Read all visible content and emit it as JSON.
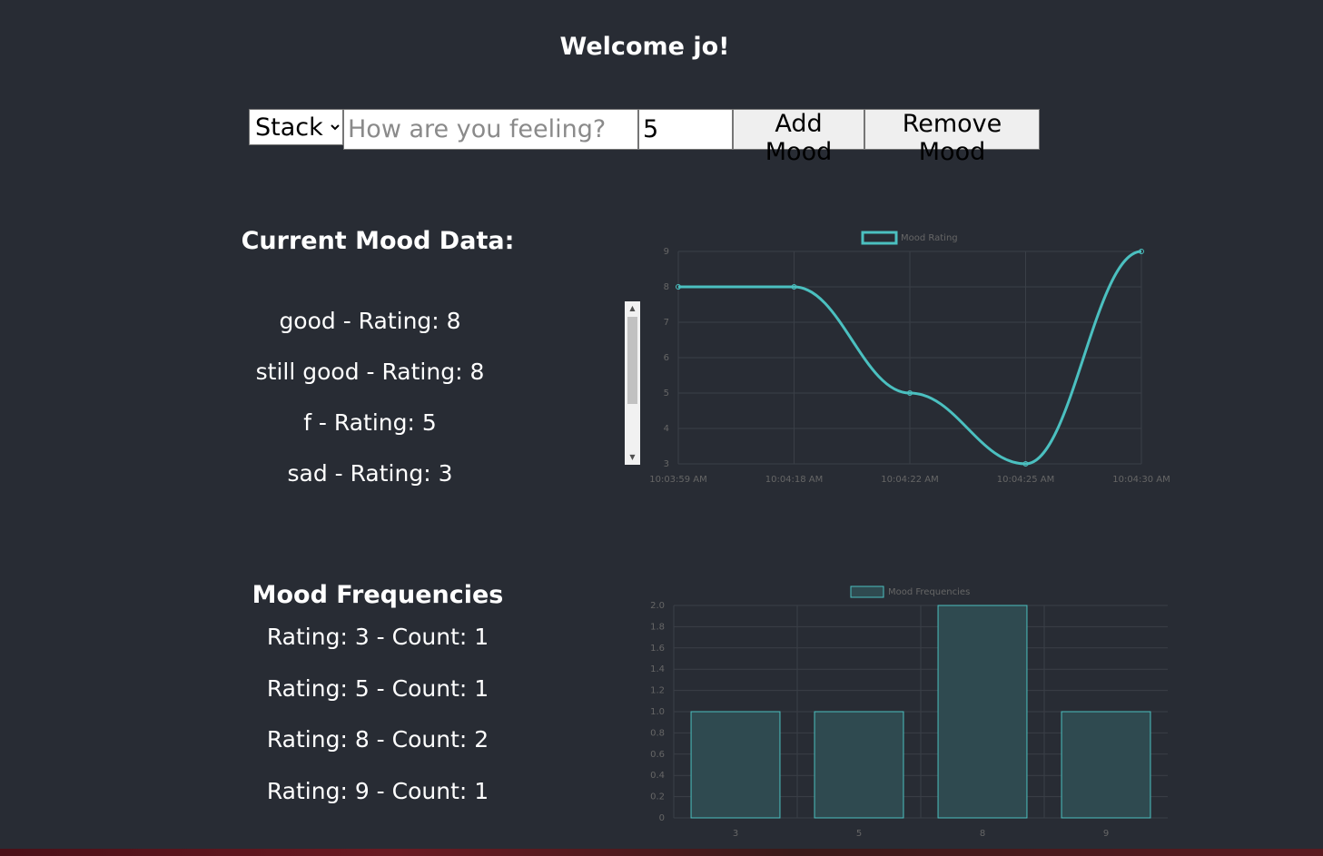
{
  "header": {
    "title": "Welcome jo!"
  },
  "controls": {
    "strategy_selected": "Stack",
    "mood_placeholder": "How are you feeling?",
    "rating_value": "5",
    "add_label": "Add Mood",
    "remove_label": "Remove Mood"
  },
  "current": {
    "title": "Current Mood Data:",
    "items": [
      "good - Rating: 8",
      "still good - Rating: 8",
      "f - Rating: 5",
      "sad - Rating: 3"
    ]
  },
  "frequencies": {
    "title": "Mood Frequencies",
    "items": [
      "Rating: 3 - Count: 1",
      "Rating: 5 - Count: 1",
      "Rating: 8 - Count: 2",
      "Rating: 9 - Count: 1"
    ]
  },
  "colors": {
    "background": "#282c34",
    "line": "#4bc0c0",
    "bar_fill": "#2f4a50",
    "grid": "#3a3f47",
    "tick": "#666666"
  },
  "icons": {
    "select_arrow": "chevron-down-icon",
    "scroll_up": "arrow-up-icon",
    "scroll_down": "arrow-down-icon"
  },
  "chart_data": [
    {
      "type": "line",
      "x": [
        "10:03:59 AM",
        "10:04:18 AM",
        "10:04:22 AM",
        "10:04:25 AM",
        "10:04:30 AM"
      ],
      "series": [
        {
          "name": "Mood Rating",
          "values": [
            8,
            8,
            5,
            3,
            9
          ]
        }
      ],
      "yticks": [
        "9",
        "8",
        "7",
        "6",
        "5",
        "4",
        "3"
      ],
      "ylim": [
        3,
        9
      ],
      "legend": "top-center",
      "grid": true
    },
    {
      "type": "bar",
      "categories": [
        "3",
        "5",
        "8",
        "9"
      ],
      "series": [
        {
          "name": "Mood Frequencies",
          "values": [
            1,
            1,
            2,
            1
          ]
        }
      ],
      "yticks": [
        "2.0",
        "1.8",
        "1.6",
        "1.4",
        "1.2",
        "1.0",
        "0.8",
        "0.6",
        "0.4",
        "0.2",
        "0"
      ],
      "ylim": [
        0,
        2
      ],
      "legend": "top-center",
      "grid": true
    }
  ]
}
